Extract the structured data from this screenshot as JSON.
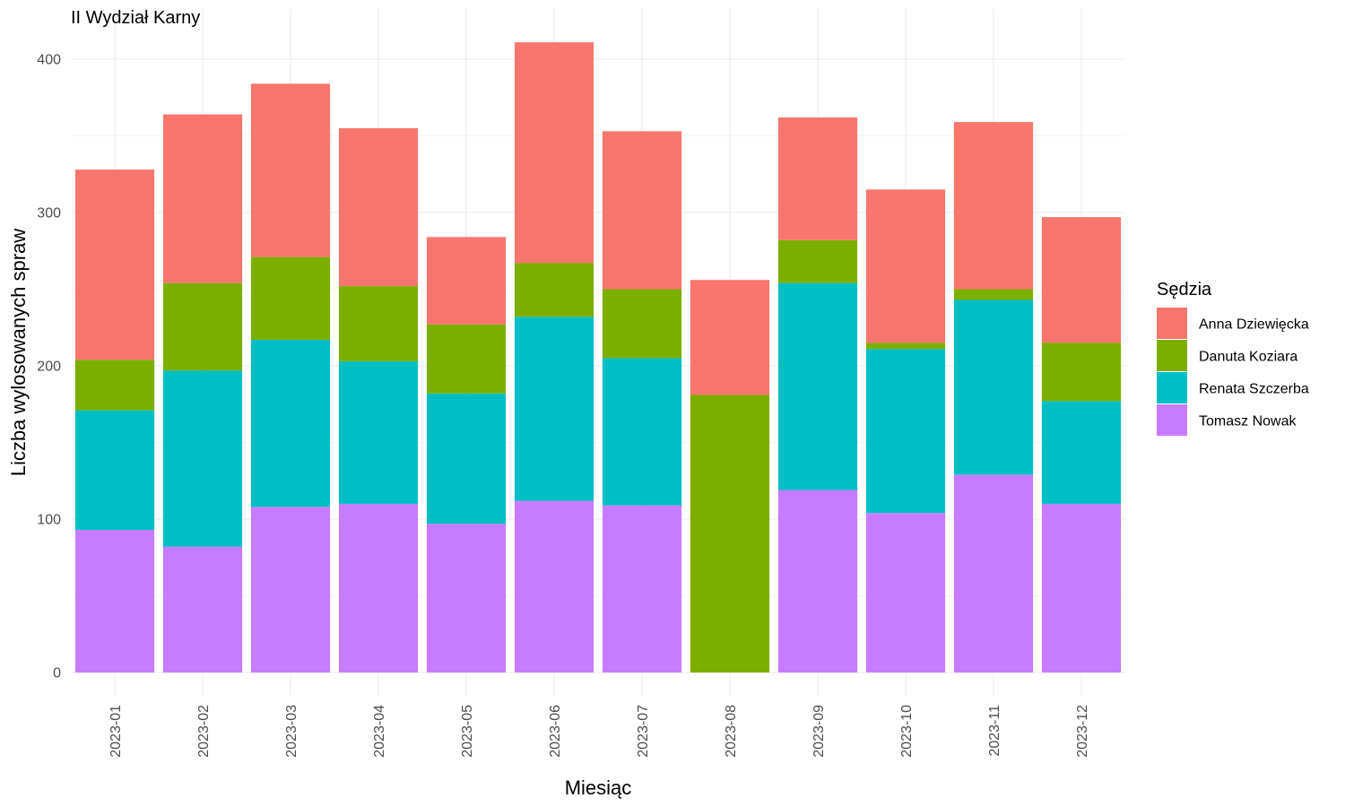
{
  "chart_data": {
    "type": "bar",
    "stacked": true,
    "title": "II Wydział Karny",
    "xlabel": "Miesiąc",
    "ylabel": "Liczba wylosowanych spraw",
    "ylim": [
      0,
      420
    ],
    "yticks": [
      0,
      100,
      200,
      300,
      400
    ],
    "grid": true,
    "legend_placement": "right",
    "legend_title": "Sędzia",
    "categories": [
      "2023-01",
      "2023-02",
      "2023-03",
      "2023-04",
      "2023-05",
      "2023-06",
      "2023-07",
      "2023-08",
      "2023-09",
      "2023-10",
      "2023-11",
      "2023-12"
    ],
    "series": [
      {
        "name": "Tomasz Nowak",
        "color": "#C77CFF",
        "values": [
          93,
          82,
          108,
          110,
          97,
          112,
          109,
          0,
          119,
          104,
          129,
          110
        ]
      },
      {
        "name": "Renata Szczerba",
        "color": "#00BFC4",
        "values": [
          78,
          115,
          109,
          93,
          85,
          120,
          96,
          0,
          135,
          107,
          114,
          67
        ]
      },
      {
        "name": "Danuta Koziara",
        "color": "#7CAE00",
        "values": [
          33,
          57,
          54,
          49,
          45,
          35,
          45,
          181,
          28,
          4,
          7,
          38
        ]
      },
      {
        "name": "Anna Dziewięcka",
        "color": "#F8766D",
        "values": [
          124,
          110,
          113,
          103,
          57,
          144,
          103,
          75,
          80,
          100,
          109,
          82
        ]
      }
    ],
    "legend_order": [
      "Anna Dziewięcka",
      "Danuta Koziara",
      "Renata Szczerba",
      "Tomasz Nowak"
    ]
  }
}
